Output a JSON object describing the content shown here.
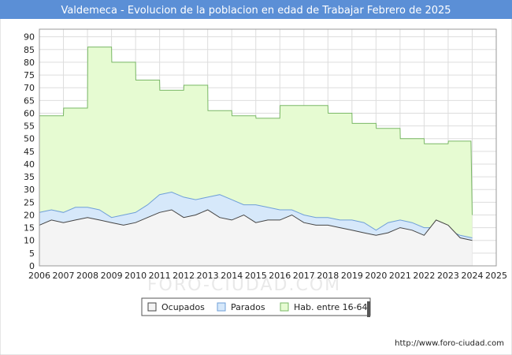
{
  "chart_data": {
    "type": "area",
    "title": "Valdemeca - Evolucion de la poblacion en edad de Trabajar Febrero de 2025",
    "xlabel": "",
    "ylabel": "",
    "x_ticks": [
      "2006",
      "2007",
      "2008",
      "2009",
      "2010",
      "2011",
      "2012",
      "2013",
      "2014",
      "2015",
      "2016",
      "2017",
      "2018",
      "2019",
      "2020",
      "2021",
      "2022",
      "2023",
      "2024",
      "2025"
    ],
    "y_ticks": [
      "0",
      "5",
      "10",
      "15",
      "20",
      "25",
      "30",
      "35",
      "40",
      "45",
      "50",
      "55",
      "60",
      "65",
      "70",
      "75",
      "80",
      "85",
      "90"
    ],
    "xlim": [
      2006,
      2025
    ],
    "ylim": [
      0,
      93
    ],
    "grid": true,
    "legend_position": "bottom",
    "colors": {
      "title_bar": "#5b8fd6",
      "hab_fill": "#e6fbd2",
      "hab_line": "#7ab866",
      "parados_fill": "#d6e8fa",
      "parados_line": "#6f9fd8",
      "ocupados_fill": "#f4f4f4",
      "ocupados_line": "#444444",
      "grid": "#dddddd"
    },
    "series": [
      {
        "name": "Hab. entre 16-64",
        "x": [
          2006,
          2007,
          2007.01,
          2008,
          2008.01,
          2009,
          2009.01,
          2010,
          2010.01,
          2011,
          2011.01,
          2012,
          2012.01,
          2013,
          2013.01,
          2014,
          2014.01,
          2015,
          2015.01,
          2016,
          2016.01,
          2017,
          2017.01,
          2018,
          2018.01,
          2019,
          2019.01,
          2020,
          2020.01,
          2021,
          2021.01,
          2022,
          2022.01,
          2023,
          2023.01,
          2023.95,
          2024.0
        ],
        "values": [
          59,
          59,
          62,
          62,
          86,
          86,
          80,
          80,
          73,
          73,
          69,
          69,
          71,
          71,
          61,
          61,
          59,
          59,
          58,
          58,
          63,
          63,
          63,
          63,
          60,
          60,
          56,
          56,
          54,
          54,
          50,
          50,
          48,
          48,
          49,
          49,
          20
        ]
      },
      {
        "name": "Parados",
        "x": [
          2006,
          2006.5,
          2007,
          2007.5,
          2008,
          2008.5,
          2009,
          2009.5,
          2010,
          2010.5,
          2011,
          2011.5,
          2012,
          2012.5,
          2013,
          2013.5,
          2014,
          2014.5,
          2015,
          2015.5,
          2016,
          2016.5,
          2017,
          2017.5,
          2018,
          2018.5,
          2019,
          2019.5,
          2020,
          2020.5,
          2021,
          2021.5,
          2022,
          2022.5,
          2023,
          2023.5,
          2024
        ],
        "values": [
          21,
          22,
          21,
          23,
          23,
          22,
          19,
          20,
          21,
          24,
          28,
          29,
          27,
          26,
          27,
          28,
          26,
          24,
          24,
          23,
          22,
          22,
          20,
          19,
          19,
          18,
          18,
          17,
          14,
          17,
          18,
          17,
          15,
          15,
          14,
          12,
          11
        ]
      },
      {
        "name": "Ocupados",
        "x": [
          2006,
          2006.5,
          2007,
          2007.5,
          2008,
          2008.5,
          2009,
          2009.5,
          2010,
          2010.5,
          2011,
          2011.5,
          2012,
          2012.5,
          2013,
          2013.5,
          2014,
          2014.5,
          2015,
          2015.5,
          2016,
          2016.5,
          2017,
          2017.5,
          2018,
          2018.5,
          2019,
          2019.5,
          2020,
          2020.5,
          2021,
          2021.5,
          2022,
          2022.5,
          2023,
          2023.5,
          2024
        ],
        "values": [
          16,
          18,
          17,
          18,
          19,
          18,
          17,
          16,
          17,
          19,
          21,
          22,
          19,
          20,
          22,
          19,
          18,
          20,
          17,
          18,
          18,
          20,
          17,
          16,
          16,
          15,
          14,
          13,
          12,
          13,
          15,
          14,
          12,
          18,
          16,
          11,
          10
        ]
      }
    ],
    "legend": [
      "Ocupados",
      "Parados",
      "Hab. entre 16-64"
    ],
    "watermark": "FORO-CIUDAD.COM",
    "source": "http://www.foro-ciudad.com"
  }
}
